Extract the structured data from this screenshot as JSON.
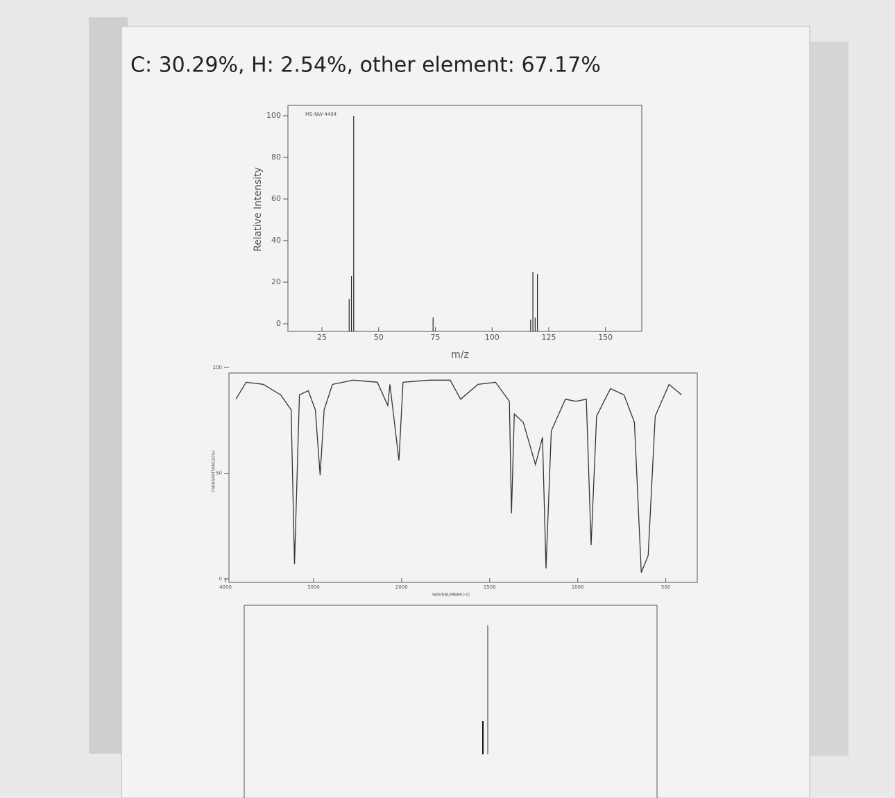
{
  "header": {
    "text": "C: 30.29%, H: 2.54%, other element: 67.17%"
  },
  "chart_data": [
    {
      "type": "bar",
      "id_label": "MS-NW-4404",
      "xlabel": "m/z",
      "ylabel": "Relative Intensity",
      "x": [
        37,
        38,
        39,
        74,
        117,
        118,
        119,
        120
      ],
      "values": [
        12,
        23,
        100,
        3,
        2,
        25,
        3,
        24
      ],
      "color": "#222222",
      "xlim": [
        10,
        166
      ],
      "xticks": [
        25,
        50,
        75,
        100,
        125,
        150
      ],
      "ylim": [
        0,
        105
      ],
      "yticks": [
        0,
        20,
        40,
        60,
        80,
        100
      ]
    },
    {
      "type": "line",
      "xlabel": "WAVENUMBER(-1)",
      "ylabel": "TRANSMITTANCE(%)",
      "color": "#333333",
      "x": [
        3882,
        3765,
        3570,
        3373,
        3255,
        3216,
        3160,
        3060,
        2980,
        2925,
        2880,
        2785,
        2550,
        2275,
        2157,
        2133,
        2030,
        1992,
        1842,
        1724,
        1665,
        1566,
        1467,
        1388,
        1376,
        1360,
        1309,
        1240,
        1200,
        1180,
        1150,
        1070,
        1010,
        951,
        924,
        893,
        814,
        737,
        678,
        639,
        600,
        560,
        481,
        410
      ],
      "values": [
        85,
        93,
        92,
        87,
        80,
        7,
        87,
        89,
        80,
        49,
        80,
        92,
        94,
        93,
        82,
        92,
        56,
        93,
        94,
        94,
        85,
        92,
        93,
        84,
        31,
        78,
        74,
        54,
        67,
        5,
        70,
        85,
        84,
        85,
        16,
        77,
        90,
        87,
        74,
        3,
        11,
        77,
        92,
        87
      ],
      "xlim": [
        4000,
        400
      ],
      "xticks": [
        4000,
        3000,
        2000,
        1500,
        1000,
        500
      ],
      "ylim": [
        0,
        100
      ],
      "yticks": [
        0,
        50,
        100
      ]
    }
  ]
}
